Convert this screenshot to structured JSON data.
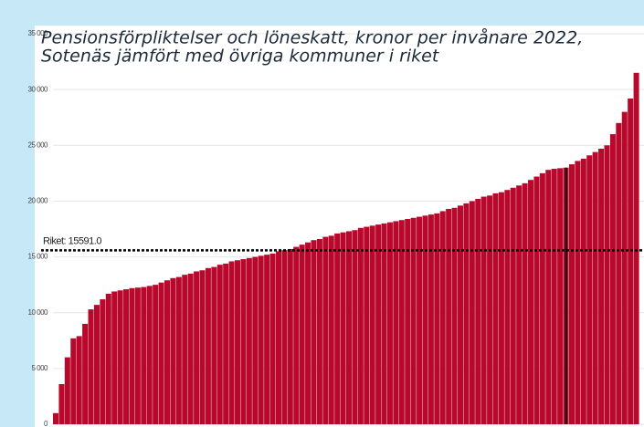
{
  "chart_data": {
    "type": "bar",
    "title_lines": [
      "Pensionsförpliktelser och löneskatt, kronor per invånare 2022,",
      "Sotenäs jämfört med övriga kommuner i riket"
    ],
    "values": [
      1000,
      3600,
      6000,
      7700,
      7900,
      9000,
      10300,
      10700,
      11200,
      11700,
      11900,
      12000,
      12100,
      12200,
      12250,
      12300,
      12400,
      12500,
      12700,
      12900,
      13100,
      13200,
      13400,
      13500,
      13700,
      13800,
      14000,
      14100,
      14300,
      14400,
      14600,
      14700,
      14800,
      14900,
      15000,
      15100,
      15200,
      15300,
      15500,
      15600,
      15700,
      15900,
      16100,
      16300,
      16500,
      16600,
      16800,
      16900,
      17100,
      17200,
      17300,
      17400,
      17600,
      17700,
      17800,
      17900,
      18000,
      18100,
      18200,
      18300,
      18400,
      18500,
      18600,
      18700,
      18800,
      18900,
      19100,
      19300,
      19400,
      19600,
      19800,
      20000,
      20200,
      20400,
      20500,
      20700,
      20800,
      21000,
      21200,
      21400,
      21600,
      21900,
      22200,
      22500,
      22800,
      22900,
      22950,
      23000,
      23300,
      23600,
      23800,
      24100,
      24400,
      24700,
      25000,
      26000,
      27000,
      28000,
      29200,
      31500
    ],
    "color": "#b8092d",
    "highlight_index": 87,
    "reference_line": {
      "label": "Riket: 15591.0",
      "value": 15591
    },
    "ylim": [
      0,
      35000
    ],
    "yticks": [
      {
        "value": 0,
        "label": "0"
      },
      {
        "value": 5000,
        "label": "5 000"
      },
      {
        "value": 10000,
        "label": "10 000"
      },
      {
        "value": 15000,
        "label": "15 000"
      },
      {
        "value": 20000,
        "label": "20 000"
      },
      {
        "value": 25000,
        "label": "25 000"
      },
      {
        "value": 30000,
        "label": "30 000"
      },
      {
        "value": 35000,
        "label": "35 000"
      }
    ],
    "grid": true
  }
}
